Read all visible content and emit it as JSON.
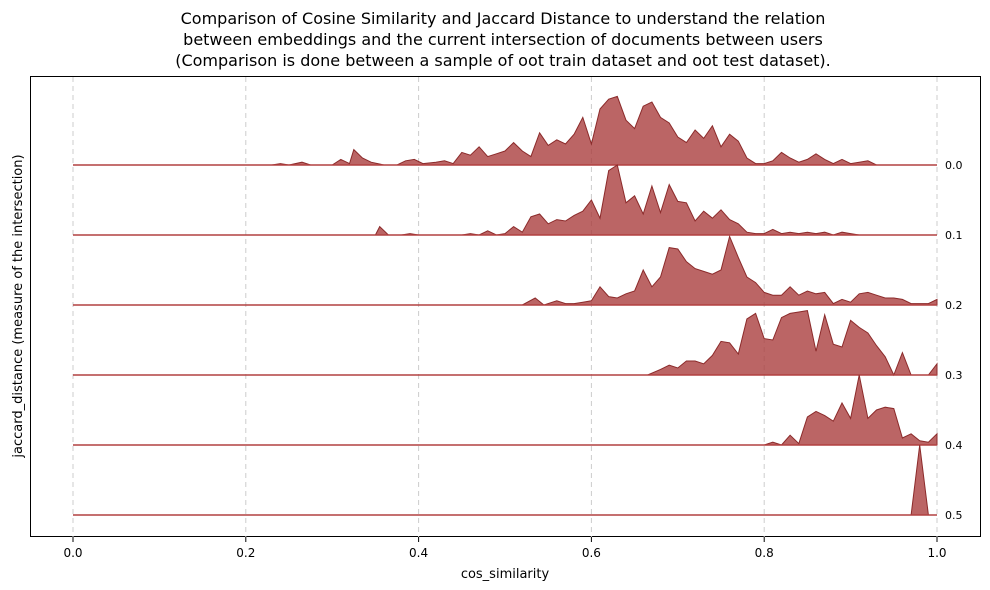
{
  "chart_data": {
    "type": "area",
    "title_lines": [
      "Comparison of Cosine Similarity and Jaccard Distance to understand the relation",
      "between embeddings and the current intersection of documents between users",
      "(Comparison is done between a sample of oot train dataset and oot test dataset)."
    ],
    "xlabel": "cos_similarity",
    "ylabel": "jaccard_distance (measure of the intersection)",
    "xlim": [
      0.0,
      1.0
    ],
    "x_ticks": [
      "0.0",
      "0.2",
      "0.4",
      "0.6",
      "0.8",
      "1.0"
    ],
    "grid": "vertical dashed",
    "colors": {
      "fill": "#a83a3a",
      "edge": "#8b2a2a",
      "baseline": "#b24040",
      "grid": "#cccccc"
    },
    "series": [
      {
        "name": "0.0",
        "points": [
          [
            0.0,
            0
          ],
          [
            0.23,
            0
          ],
          [
            0.24,
            0.02
          ],
          [
            0.25,
            0
          ],
          [
            0.265,
            0.04
          ],
          [
            0.275,
            0
          ],
          [
            0.3,
            0
          ],
          [
            0.31,
            0.08
          ],
          [
            0.32,
            0.02
          ],
          [
            0.325,
            0.22
          ],
          [
            0.335,
            0.1
          ],
          [
            0.345,
            0.04
          ],
          [
            0.36,
            0
          ],
          [
            0.375,
            0
          ],
          [
            0.385,
            0.06
          ],
          [
            0.395,
            0.08
          ],
          [
            0.405,
            0.02
          ],
          [
            0.42,
            0.04
          ],
          [
            0.43,
            0.06
          ],
          [
            0.44,
            0.02
          ],
          [
            0.45,
            0.18
          ],
          [
            0.46,
            0.14
          ],
          [
            0.47,
            0.26
          ],
          [
            0.48,
            0.12
          ],
          [
            0.49,
            0.16
          ],
          [
            0.5,
            0.2
          ],
          [
            0.51,
            0.32
          ],
          [
            0.52,
            0.2
          ],
          [
            0.53,
            0.12
          ],
          [
            0.54,
            0.46
          ],
          [
            0.55,
            0.28
          ],
          [
            0.56,
            0.36
          ],
          [
            0.57,
            0.3
          ],
          [
            0.58,
            0.44
          ],
          [
            0.59,
            0.68
          ],
          [
            0.6,
            0.3
          ],
          [
            0.61,
            0.8
          ],
          [
            0.62,
            0.94
          ],
          [
            0.63,
            0.98
          ],
          [
            0.64,
            0.64
          ],
          [
            0.65,
            0.52
          ],
          [
            0.66,
            0.84
          ],
          [
            0.67,
            0.9
          ],
          [
            0.68,
            0.68
          ],
          [
            0.69,
            0.6
          ],
          [
            0.7,
            0.4
          ],
          [
            0.71,
            0.32
          ],
          [
            0.72,
            0.5
          ],
          [
            0.73,
            0.38
          ],
          [
            0.74,
            0.56
          ],
          [
            0.75,
            0.26
          ],
          [
            0.76,
            0.44
          ],
          [
            0.77,
            0.34
          ],
          [
            0.78,
            0.1
          ],
          [
            0.79,
            0.02
          ],
          [
            0.8,
            0.02
          ],
          [
            0.81,
            0.06
          ],
          [
            0.82,
            0.18
          ],
          [
            0.83,
            0.1
          ],
          [
            0.84,
            0.04
          ],
          [
            0.85,
            0.08
          ],
          [
            0.86,
            0.16
          ],
          [
            0.87,
            0.08
          ],
          [
            0.88,
            0.02
          ],
          [
            0.89,
            0.08
          ],
          [
            0.9,
            0.02
          ],
          [
            0.91,
            0.04
          ],
          [
            0.92,
            0.06
          ],
          [
            0.93,
            0
          ],
          [
            1.0,
            0
          ]
        ]
      },
      {
        "name": "0.1",
        "points": [
          [
            0.0,
            0
          ],
          [
            0.35,
            0
          ],
          [
            0.355,
            0.12
          ],
          [
            0.365,
            0
          ],
          [
            0.38,
            0
          ],
          [
            0.39,
            0.02
          ],
          [
            0.4,
            0
          ],
          [
            0.45,
            0
          ],
          [
            0.46,
            0.02
          ],
          [
            0.47,
            0
          ],
          [
            0.48,
            0.06
          ],
          [
            0.49,
            0
          ],
          [
            0.5,
            0.02
          ],
          [
            0.51,
            0.12
          ],
          [
            0.52,
            0.04
          ],
          [
            0.53,
            0.26
          ],
          [
            0.54,
            0.3
          ],
          [
            0.55,
            0.16
          ],
          [
            0.56,
            0.22
          ],
          [
            0.57,
            0.2
          ],
          [
            0.58,
            0.28
          ],
          [
            0.59,
            0.34
          ],
          [
            0.6,
            0.5
          ],
          [
            0.61,
            0.24
          ],
          [
            0.62,
            0.92
          ],
          [
            0.63,
            1.0
          ],
          [
            0.64,
            0.46
          ],
          [
            0.65,
            0.56
          ],
          [
            0.66,
            0.3
          ],
          [
            0.67,
            0.7
          ],
          [
            0.68,
            0.32
          ],
          [
            0.69,
            0.72
          ],
          [
            0.7,
            0.48
          ],
          [
            0.71,
            0.46
          ],
          [
            0.72,
            0.2
          ],
          [
            0.73,
            0.34
          ],
          [
            0.74,
            0.24
          ],
          [
            0.75,
            0.36
          ],
          [
            0.76,
            0.22
          ],
          [
            0.77,
            0.16
          ],
          [
            0.78,
            0.04
          ],
          [
            0.79,
            0.02
          ],
          [
            0.8,
            0.02
          ],
          [
            0.81,
            0.08
          ],
          [
            0.82,
            0.02
          ],
          [
            0.83,
            0.04
          ],
          [
            0.84,
            0.02
          ],
          [
            0.85,
            0.04
          ],
          [
            0.86,
            0.02
          ],
          [
            0.87,
            0.04
          ],
          [
            0.88,
            0
          ],
          [
            0.89,
            0.04
          ],
          [
            0.9,
            0.02
          ],
          [
            0.91,
            0
          ],
          [
            1.0,
            0
          ]
        ]
      },
      {
        "name": "0.2",
        "points": [
          [
            0.0,
            0
          ],
          [
            0.52,
            0
          ],
          [
            0.535,
            0.1
          ],
          [
            0.545,
            0
          ],
          [
            0.56,
            0.06
          ],
          [
            0.57,
            0.02
          ],
          [
            0.58,
            0.02
          ],
          [
            0.59,
            0.04
          ],
          [
            0.6,
            0.06
          ],
          [
            0.61,
            0.26
          ],
          [
            0.62,
            0.12
          ],
          [
            0.63,
            0.1
          ],
          [
            0.64,
            0.16
          ],
          [
            0.65,
            0.2
          ],
          [
            0.66,
            0.5
          ],
          [
            0.67,
            0.26
          ],
          [
            0.68,
            0.4
          ],
          [
            0.69,
            0.82
          ],
          [
            0.7,
            0.8
          ],
          [
            0.71,
            0.62
          ],
          [
            0.72,
            0.52
          ],
          [
            0.73,
            0.48
          ],
          [
            0.74,
            0.44
          ],
          [
            0.75,
            0.5
          ],
          [
            0.76,
            0.98
          ],
          [
            0.77,
            0.68
          ],
          [
            0.78,
            0.4
          ],
          [
            0.79,
            0.32
          ],
          [
            0.8,
            0.18
          ],
          [
            0.81,
            0.14
          ],
          [
            0.82,
            0.14
          ],
          [
            0.83,
            0.26
          ],
          [
            0.84,
            0.14
          ],
          [
            0.85,
            0.2
          ],
          [
            0.86,
            0.16
          ],
          [
            0.87,
            0.18
          ],
          [
            0.88,
            0.02
          ],
          [
            0.89,
            0.08
          ],
          [
            0.9,
            0.04
          ],
          [
            0.91,
            0.16
          ],
          [
            0.92,
            0.18
          ],
          [
            0.93,
            0.14
          ],
          [
            0.94,
            0.1
          ],
          [
            0.95,
            0.1
          ],
          [
            0.96,
            0.08
          ],
          [
            0.97,
            0.02
          ],
          [
            0.98,
            0.02
          ],
          [
            0.99,
            0.02
          ],
          [
            1.0,
            0.08
          ]
        ]
      },
      {
        "name": "0.3",
        "points": [
          [
            0.0,
            0
          ],
          [
            0.665,
            0
          ],
          [
            0.68,
            0.08
          ],
          [
            0.69,
            0.14
          ],
          [
            0.7,
            0.1
          ],
          [
            0.71,
            0.2
          ],
          [
            0.72,
            0.2
          ],
          [
            0.73,
            0.16
          ],
          [
            0.74,
            0.28
          ],
          [
            0.75,
            0.48
          ],
          [
            0.76,
            0.46
          ],
          [
            0.77,
            0.3
          ],
          [
            0.78,
            0.8
          ],
          [
            0.79,
            0.88
          ],
          [
            0.8,
            0.52
          ],
          [
            0.81,
            0.5
          ],
          [
            0.82,
            0.82
          ],
          [
            0.83,
            0.88
          ],
          [
            0.84,
            0.9
          ],
          [
            0.85,
            0.92
          ],
          [
            0.86,
            0.34
          ],
          [
            0.87,
            0.86
          ],
          [
            0.88,
            0.44
          ],
          [
            0.89,
            0.4
          ],
          [
            0.9,
            0.78
          ],
          [
            0.91,
            0.68
          ],
          [
            0.92,
            0.6
          ],
          [
            0.93,
            0.42
          ],
          [
            0.94,
            0.26
          ],
          [
            0.95,
            0
          ],
          [
            0.96,
            0.32
          ],
          [
            0.97,
            0
          ],
          [
            0.98,
            0
          ],
          [
            0.99,
            0
          ],
          [
            1.0,
            0.16
          ]
        ]
      },
      {
        "name": "0.4",
        "points": [
          [
            0.0,
            0
          ],
          [
            0.8,
            0
          ],
          [
            0.81,
            0.04
          ],
          [
            0.82,
            0
          ],
          [
            0.83,
            0.14
          ],
          [
            0.84,
            0.02
          ],
          [
            0.85,
            0.4
          ],
          [
            0.86,
            0.48
          ],
          [
            0.87,
            0.42
          ],
          [
            0.88,
            0.34
          ],
          [
            0.89,
            0.6
          ],
          [
            0.9,
            0.38
          ],
          [
            0.91,
            1.0
          ],
          [
            0.92,
            0.38
          ],
          [
            0.93,
            0.5
          ],
          [
            0.94,
            0.54
          ],
          [
            0.95,
            0.52
          ],
          [
            0.96,
            0.1
          ],
          [
            0.97,
            0.16
          ],
          [
            0.98,
            0.06
          ],
          [
            0.99,
            0.04
          ],
          [
            1.0,
            0.16
          ]
        ]
      },
      {
        "name": "0.5",
        "points": [
          [
            0.0,
            0
          ],
          [
            0.97,
            0
          ],
          [
            0.98,
            1.0
          ],
          [
            0.99,
            0
          ],
          [
            1.0,
            0
          ]
        ]
      }
    ]
  }
}
